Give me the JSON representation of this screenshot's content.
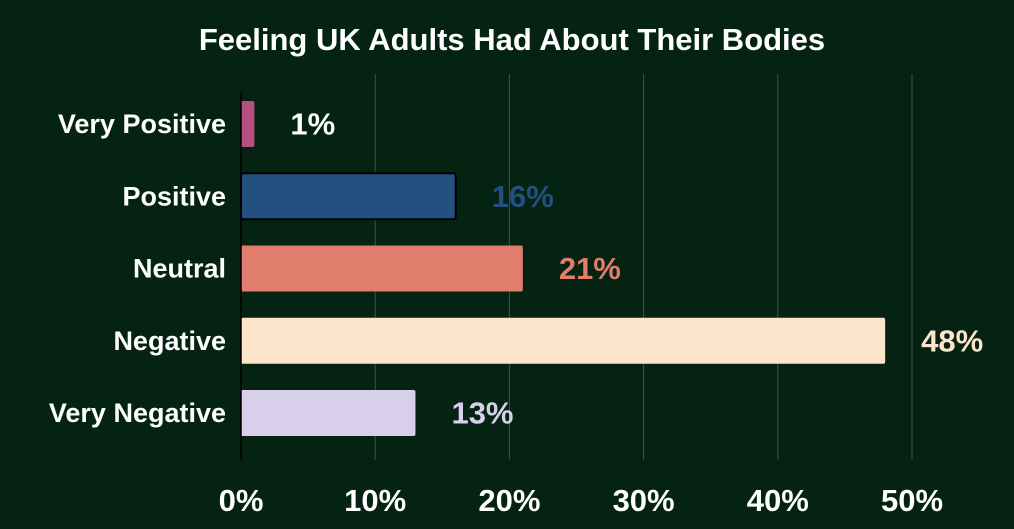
{
  "chart_data": {
    "type": "bar",
    "orientation": "horizontal",
    "title": "Feeling UK Adults Had About Their Bodies",
    "categories": [
      "Very Positive",
      "Positive",
      "Neutral",
      "Negative",
      "Very Negative"
    ],
    "values": [
      1,
      16,
      21,
      48,
      13
    ],
    "value_labels": [
      "1%",
      "16%",
      "21%",
      "48%",
      "13%"
    ],
    "colors": [
      "#b4507e",
      "#225180",
      "#e07d6d",
      "#fde5cb",
      "#d8d0ea"
    ],
    "label_colors": [
      "#ffffff",
      "#225180",
      "#e07d6d",
      "#fde5cb",
      "#d8d0ea"
    ],
    "xlim": [
      0,
      50
    ],
    "x_ticks": [
      0,
      10,
      20,
      30,
      40,
      50
    ],
    "x_tick_labels": [
      "0%",
      "10%",
      "20%",
      "30%",
      "40%",
      "50%"
    ],
    "grid": true,
    "background": "#052313"
  }
}
